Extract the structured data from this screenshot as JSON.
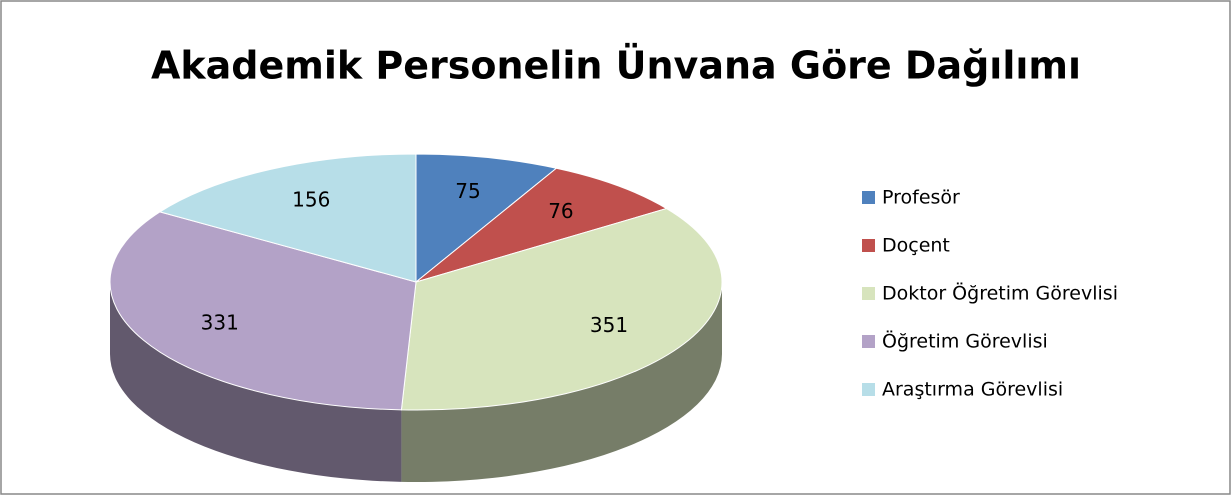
{
  "chart_data": {
    "type": "pie",
    "title": "Akademik Personelin Ünvana Göre Dağılımı",
    "categories": [
      "Profesör",
      "Doçent",
      "Doktor Öğretim Görevlisi",
      "Öğretim Görevlisi",
      "Araştırma Görevlisi"
    ],
    "values": [
      75,
      76,
      351,
      331,
      156
    ],
    "colors": [
      "#4f81bd",
      "#c0504d",
      "#d7e4bd",
      "#b3a2c7",
      "#b7dee8"
    ],
    "legend": "right"
  }
}
